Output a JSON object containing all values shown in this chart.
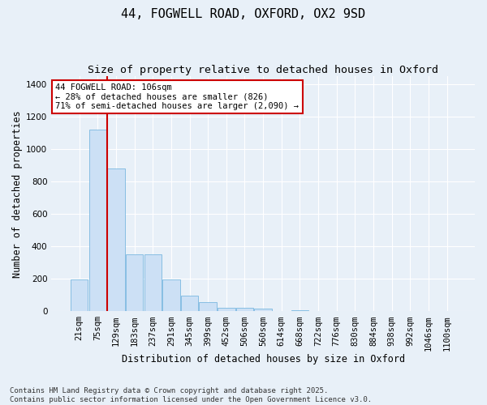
{
  "title_line1": "44, FOGWELL ROAD, OXFORD, OX2 9SD",
  "title_line2": "Size of property relative to detached houses in Oxford",
  "xlabel": "Distribution of detached houses by size in Oxford",
  "ylabel": "Number of detached properties",
  "categories": [
    "21sqm",
    "75sqm",
    "129sqm",
    "183sqm",
    "237sqm",
    "291sqm",
    "345sqm",
    "399sqm",
    "452sqm",
    "506sqm",
    "560sqm",
    "614sqm",
    "668sqm",
    "722sqm",
    "776sqm",
    "830sqm",
    "884sqm",
    "938sqm",
    "992sqm",
    "1046sqm",
    "1100sqm"
  ],
  "values": [
    195,
    1120,
    880,
    350,
    350,
    195,
    95,
    55,
    22,
    20,
    14,
    0,
    8,
    0,
    0,
    0,
    0,
    0,
    0,
    0,
    0
  ],
  "bar_color": "#cce0f5",
  "bar_edge_color": "#7ab8e0",
  "vline_color": "#cc0000",
  "vline_x_index": 1,
  "annotation_text": "44 FOGWELL ROAD: 106sqm\n← 28% of detached houses are smaller (826)\n71% of semi-detached houses are larger (2,090) →",
  "annotation_box_color": "#ffffff",
  "annotation_box_edge": "#cc0000",
  "ylim": [
    0,
    1450
  ],
  "yticks": [
    0,
    200,
    400,
    600,
    800,
    1000,
    1200,
    1400
  ],
  "background_color": "#e8f0f8",
  "grid_color": "#ffffff",
  "footer_line1": "Contains HM Land Registry data © Crown copyright and database right 2025.",
  "footer_line2": "Contains public sector information licensed under the Open Government Licence v3.0.",
  "title_fontsize": 11,
  "subtitle_fontsize": 9.5,
  "axis_label_fontsize": 8.5,
  "tick_fontsize": 7.5,
  "annotation_fontsize": 7.5,
  "footer_fontsize": 6.5
}
